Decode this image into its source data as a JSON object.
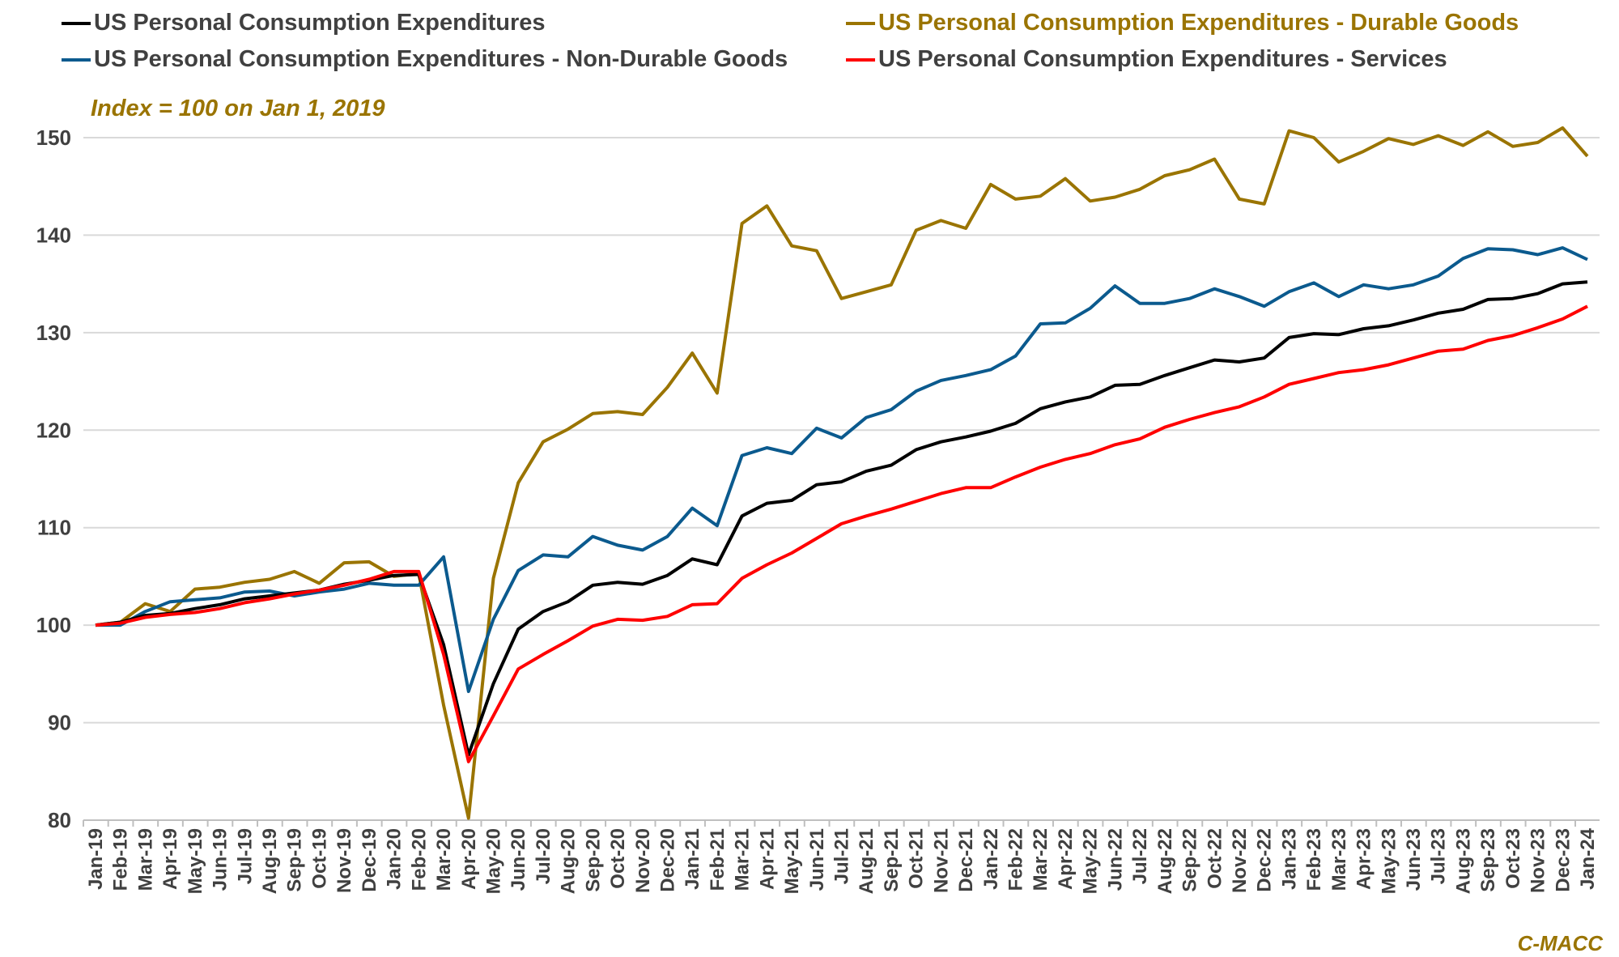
{
  "chart_data": {
    "type": "line",
    "title": "",
    "annotation": "Index = 100 on Jan 1, 2019",
    "source": "C-MACC",
    "xlabel": "",
    "ylabel": "",
    "ylim": [
      80,
      150
    ],
    "yticks": [
      80,
      90,
      100,
      110,
      120,
      130,
      140,
      150
    ],
    "grid": true,
    "legend_position": "top",
    "categories": [
      "Jan-19",
      "Feb-19",
      "Mar-19",
      "Apr-19",
      "May-19",
      "Jun-19",
      "Jul-19",
      "Aug-19",
      "Sep-19",
      "Oct-19",
      "Nov-19",
      "Dec-19",
      "Jan-20",
      "Feb-20",
      "Mar-20",
      "Apr-20",
      "May-20",
      "Jun-20",
      "Jul-20",
      "Aug-20",
      "Sep-20",
      "Oct-20",
      "Nov-20",
      "Dec-20",
      "Jan-21",
      "Feb-21",
      "Mar-21",
      "Apr-21",
      "May-21",
      "Jun-21",
      "Jul-21",
      "Aug-21",
      "Sep-21",
      "Oct-21",
      "Nov-21",
      "Dec-21",
      "Jan-22",
      "Feb-22",
      "Mar-22",
      "Apr-22",
      "May-22",
      "Jun-22",
      "Jul-22",
      "Aug-22",
      "Sep-22",
      "Oct-22",
      "Nov-22",
      "Dec-22",
      "Jan-23",
      "Feb-23",
      "Mar-23",
      "Apr-23",
      "May-23",
      "Jun-23",
      "Jul-23",
      "Aug-23",
      "Sep-23",
      "Oct-23",
      "Nov-23",
      "Dec-23",
      "Jan-24"
    ],
    "series": [
      {
        "name": "US Personal Consumption Expenditures - Durable Goods",
        "color": "#9A7400",
        "values": [
          100,
          100.3,
          102.2,
          101.4,
          103.7,
          103.9,
          104.4,
          104.7,
          105.5,
          104.3,
          106.4,
          106.5,
          105.0,
          105.3,
          91.8,
          80.2,
          104.8,
          114.6,
          118.8,
          120.1,
          121.7,
          121.9,
          121.6,
          124.4,
          127.9,
          123.8,
          141.2,
          143.0,
          138.9,
          138.4,
          133.5,
          134.2,
          134.9,
          140.5,
          141.5,
          140.7,
          145.2,
          143.7,
          144.0,
          145.8,
          143.5,
          143.9,
          144.7,
          146.1,
          146.7,
          147.8,
          143.7,
          143.2,
          150.7,
          150.0,
          147.5,
          148.6,
          149.9,
          149.3,
          150.2,
          149.2,
          150.6,
          149.1,
          149.5,
          151.0,
          148.1
        ]
      },
      {
        "name": "US Personal Consumption Expenditures - Non-Durable Goods",
        "color": "#0B5A8E",
        "values": [
          100,
          100,
          101.4,
          102.4,
          102.6,
          102.8,
          103.4,
          103.5,
          103.0,
          103.4,
          103.7,
          104.3,
          104.1,
          104.1,
          107.0,
          93.2,
          100.6,
          105.6,
          107.2,
          107.0,
          109.1,
          108.2,
          107.7,
          109.1,
          112.0,
          110.2,
          117.4,
          118.2,
          117.6,
          120.2,
          119.2,
          121.3,
          122.1,
          124.0,
          125.1,
          125.6,
          126.2,
          127.6,
          130.9,
          131.0,
          132.5,
          134.8,
          133.0,
          133.0,
          133.5,
          134.5,
          133.7,
          132.7,
          134.2,
          135.1,
          133.7,
          134.9,
          134.5,
          134.9,
          135.8,
          137.6,
          138.6,
          138.5,
          138.0,
          138.7,
          137.5
        ]
      },
      {
        "name": "US Personal Consumption Expenditures",
        "color": "#000000",
        "values": [
          100,
          100.3,
          101.0,
          101.2,
          101.7,
          102.1,
          102.7,
          103.0,
          103.3,
          103.6,
          104.2,
          104.6,
          105.1,
          105.2,
          98.0,
          86.7,
          94.0,
          99.6,
          101.4,
          102.4,
          104.1,
          104.4,
          104.2,
          105.1,
          106.8,
          106.2,
          111.2,
          112.5,
          112.8,
          114.4,
          114.7,
          115.8,
          116.4,
          118.0,
          118.8,
          119.3,
          119.9,
          120.7,
          122.2,
          122.9,
          123.4,
          124.6,
          124.7,
          125.6,
          126.4,
          127.2,
          127.0,
          127.4,
          129.5,
          129.9,
          129.8,
          130.4,
          130.7,
          131.3,
          132.0,
          132.4,
          133.4,
          133.5,
          134.0,
          135.0,
          135.2
        ]
      },
      {
        "name": "US Personal Consumption Expenditures - Services",
        "color": "#FF0000",
        "values": [
          100,
          100.2,
          100.8,
          101.1,
          101.3,
          101.7,
          102.3,
          102.7,
          103.2,
          103.6,
          104.1,
          104.7,
          105.5,
          105.5,
          97.0,
          86.0,
          90.7,
          95.5,
          97.0,
          98.4,
          99.9,
          100.6,
          100.5,
          100.9,
          102.1,
          102.2,
          104.8,
          106.2,
          107.4,
          108.9,
          110.4,
          111.2,
          111.9,
          112.7,
          113.5,
          114.1,
          114.1,
          115.2,
          116.2,
          117.0,
          117.6,
          118.5,
          119.1,
          120.3,
          121.1,
          121.8,
          122.4,
          123.4,
          124.7,
          125.3,
          125.9,
          126.2,
          126.7,
          127.4,
          128.1,
          128.3,
          129.2,
          129.7,
          130.5,
          131.4,
          132.7
        ]
      }
    ]
  },
  "legend": [
    {
      "label": "US Personal Consumption Expenditures",
      "color": "#000000"
    },
    {
      "label": "US Personal Consumption Expenditures - Durable Goods",
      "color": "#9A7400"
    },
    {
      "label": "US Personal Consumption Expenditures - Non-Durable Goods",
      "color": "#0B5A8E"
    },
    {
      "label": "US Personal Consumption Expenditures - Services",
      "color": "#FF0000"
    }
  ]
}
